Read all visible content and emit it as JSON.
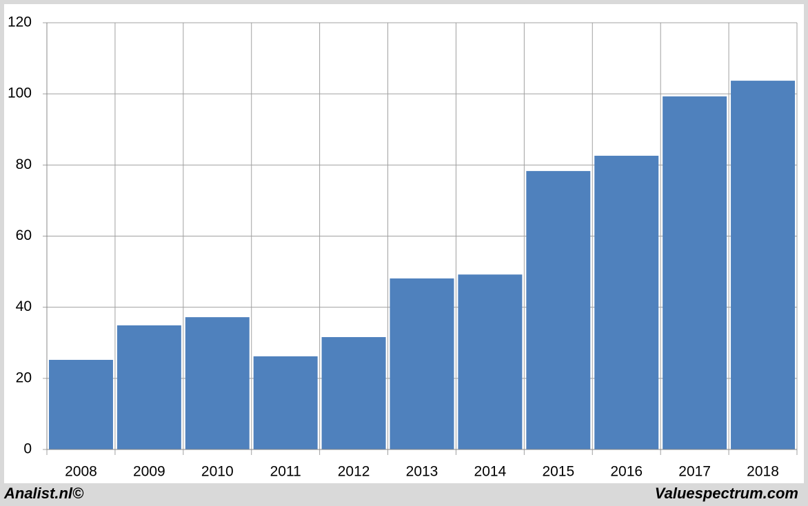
{
  "chart_data": {
    "type": "bar",
    "categories": [
      "2008",
      "2009",
      "2010",
      "2011",
      "2012",
      "2013",
      "2014",
      "2015",
      "2016",
      "2017",
      "2018"
    ],
    "values": [
      25.2,
      34.9,
      37.2,
      26.2,
      31.6,
      48.1,
      49.2,
      78.3,
      82.6,
      99.3,
      103.7
    ],
    "color": "#4f81bd",
    "ylim": [
      0,
      120
    ],
    "yticks": [
      0,
      20,
      40,
      60,
      80,
      100,
      120
    ],
    "grid": true,
    "annotations": [
      "Analist.nl©",
      "Valuespectrum.com"
    ]
  }
}
